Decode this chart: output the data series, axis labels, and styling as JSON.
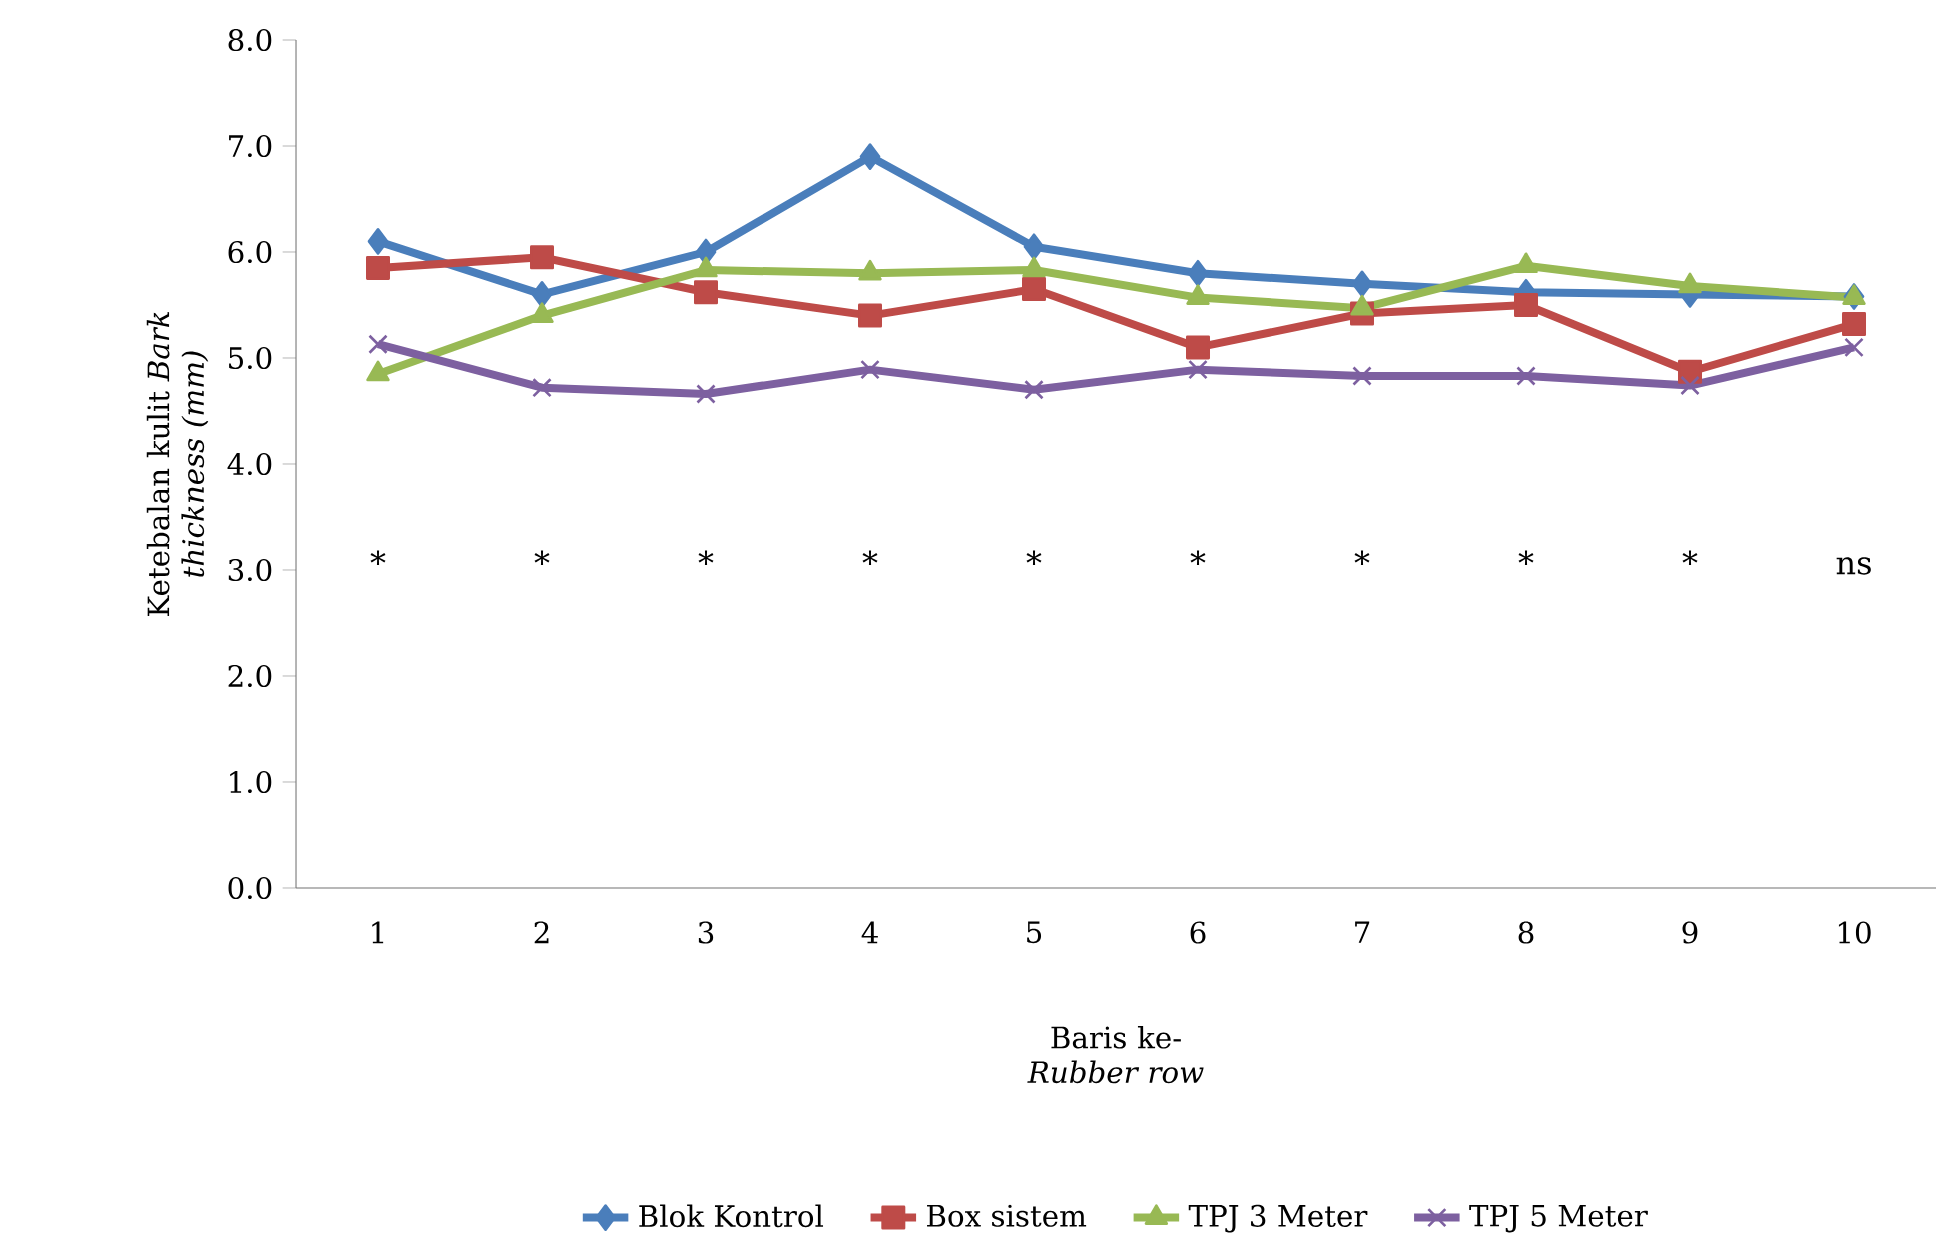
{
  "chart_data": {
    "type": "line",
    "xlabel": "Baris ke- *Rubber row*",
    "ylabel": "Ketebalan kulit *Bark thickness (mm)*",
    "categories": [
      "1",
      "2",
      "3",
      "4",
      "5",
      "6",
      "7",
      "8",
      "9",
      "10"
    ],
    "series": [
      {
        "name": "Blok Kontrol",
        "color": "#4a7ebb",
        "marker": "diamond",
        "values": [
          6.1,
          5.6,
          6.0,
          6.9,
          6.05,
          5.8,
          5.7,
          5.62,
          5.6,
          5.58
        ]
      },
      {
        "name": "Box sistem",
        "color": "#be4b48",
        "marker": "square",
        "values": [
          5.85,
          5.95,
          5.62,
          5.4,
          5.65,
          5.1,
          5.42,
          5.5,
          4.87,
          5.32
        ]
      },
      {
        "name": "TPJ 3 Meter",
        "color": "#98b954",
        "marker": "triangle",
        "values": [
          4.85,
          5.4,
          5.83,
          5.8,
          5.83,
          5.57,
          5.47,
          5.87,
          5.68,
          5.57
        ]
      },
      {
        "name": "TPJ 5 Meter",
        "color": "#7d60a0",
        "marker": "cross",
        "values": [
          5.13,
          4.72,
          4.66,
          4.89,
          4.7,
          4.89,
          4.83,
          4.83,
          4.74,
          5.1
        ]
      }
    ],
    "ylim": [
      0,
      8
    ],
    "yticks": [
      {
        "value": 0,
        "label": "0.0"
      },
      {
        "value": 1,
        "label": "1.0"
      },
      {
        "value": 2,
        "label": "2.0"
      },
      {
        "value": 3,
        "label": "3.0"
      },
      {
        "value": 4,
        "label": "4.0"
      },
      {
        "value": 5,
        "label": "5.0"
      },
      {
        "value": 6,
        "label": "6.0"
      },
      {
        "value": 7,
        "label": "7.0"
      },
      {
        "value": 8,
        "label": "8.0"
      }
    ],
    "annotations": [
      "*",
      "*",
      "*",
      "*",
      "*",
      "*",
      "*",
      "*",
      "*",
      "ns"
    ],
    "grid": false,
    "legend": "bottom",
    "line_style": "solid"
  }
}
